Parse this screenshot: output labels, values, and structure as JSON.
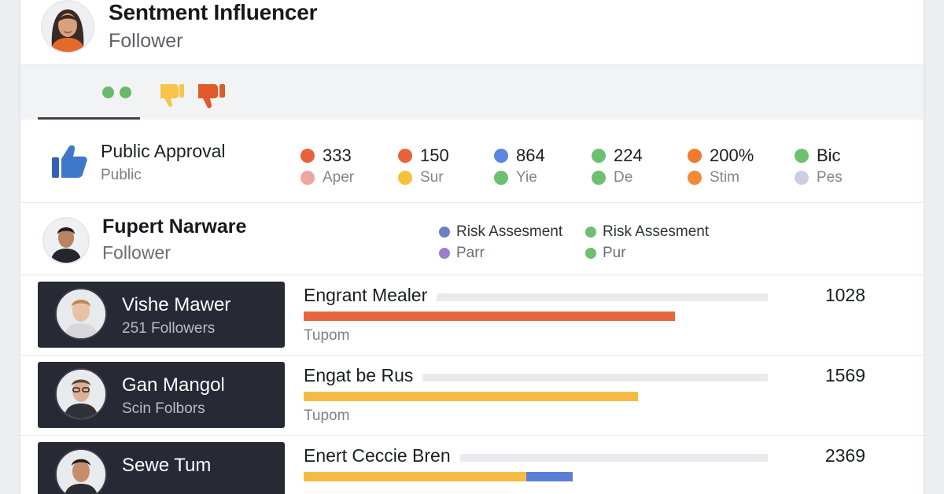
{
  "header": {
    "title": "Sentment Influencer",
    "subtitle": "Follower"
  },
  "toolbar": {
    "icons": [
      "dots-icon",
      "thumbs-down-icon",
      "thumbs-down-icon"
    ],
    "colors": {
      "dots": "#6cb86b",
      "thumb_mid": "#f6c549",
      "thumb_red": "#e05a2b"
    }
  },
  "approval": {
    "title": "Public Approval",
    "subtitle": "Public",
    "stats": [
      {
        "value": "333",
        "label": "Aper",
        "value_color": "#e8623a",
        "label_color": "#f0a5a0"
      },
      {
        "value": "150",
        "label": "Sur",
        "value_color": "#e8623a",
        "label_color": "#f6c238"
      },
      {
        "value": "864",
        "label": "Yie",
        "value_color": "#5b86e0",
        "label_color": "#6cc070"
      },
      {
        "value": "224",
        "label": "De",
        "value_color": "#6cc070",
        "label_color": "#6cc070"
      },
      {
        "value": "200%",
        "label": "Stim",
        "value_color": "#f07a30",
        "label_color": "#f28a38"
      },
      {
        "value": "Bic",
        "label": "Pes",
        "value_color": "#6cc070",
        "label_color": "#ccd0dc"
      }
    ]
  },
  "person": {
    "name": "Fupert Narware",
    "subtitle": "Follower",
    "risks": [
      {
        "label": "Risk Assesment",
        "color": "#6c7fc7",
        "faded": false
      },
      {
        "label": "Risk Assesment",
        "color": "#6cc070",
        "faded": false
      },
      {
        "label": "Parr",
        "color": "#9b7ed0",
        "faded": true
      },
      {
        "label": "Pur",
        "color": "#6cc070",
        "faded": true
      }
    ]
  },
  "list": [
    {
      "name": "Vishe Mawer",
      "followers": "251 Followers",
      "metric": "Engrant Mealer",
      "sub": "Tupom",
      "count": "1028",
      "fill": 0.8,
      "colors": [
        "#e8663e"
      ]
    },
    {
      "name": "Gan Mangol",
      "followers": "Scin Folbors",
      "metric": "Engat be Rus",
      "sub": "Tupom",
      "count": "1569",
      "fill": 0.72,
      "colors": [
        "#f6bb45"
      ]
    },
    {
      "name": "Sewe Tum",
      "followers": "",
      "metric": "Enert Ceccie Bren",
      "sub": "",
      "count": "2369",
      "fill": 0.58,
      "colors": [
        "#f6bb45",
        "#5b7fd6"
      ],
      "split": 0.48
    }
  ]
}
